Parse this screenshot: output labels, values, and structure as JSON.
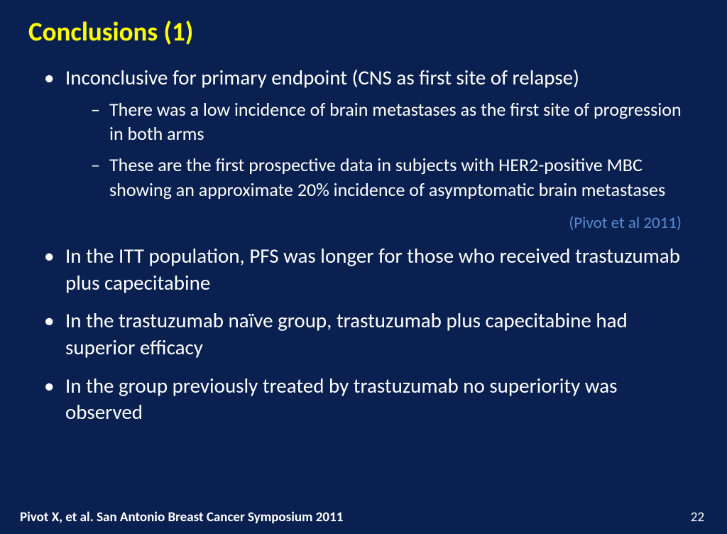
{
  "title": "Conclusions (1)",
  "bullets": [
    {
      "text": "Inconclusive for primary endpoint (CNS as first site of relapse)",
      "sub": [
        "There was a low incidence of brain metastases as the first site of progression in both arms",
        "These are the first prospective data in subjects with HER2-positive MBC showing an approximate 20% incidence of asymptomatic brain metastases"
      ],
      "citation": "(Pivot et al 2011)"
    },
    {
      "text": "In the ITT population, PFS was longer for those who received trastuzumab plus capecitabine"
    },
    {
      "text": "In the trastuzumab naïve group, trastuzumab plus capecitabine had superior efficacy"
    },
    {
      "text": "In the group previously treated by trastuzumab no superiority was observed"
    }
  ],
  "footer": {
    "reference": "Pivot X, et al. San Antonio Breast Cancer Symposium 2011",
    "page": "22"
  },
  "colors": {
    "background": "#0a2050",
    "title": "#ffff00",
    "body": "#ffffff",
    "citation": "#5a8bd0"
  }
}
